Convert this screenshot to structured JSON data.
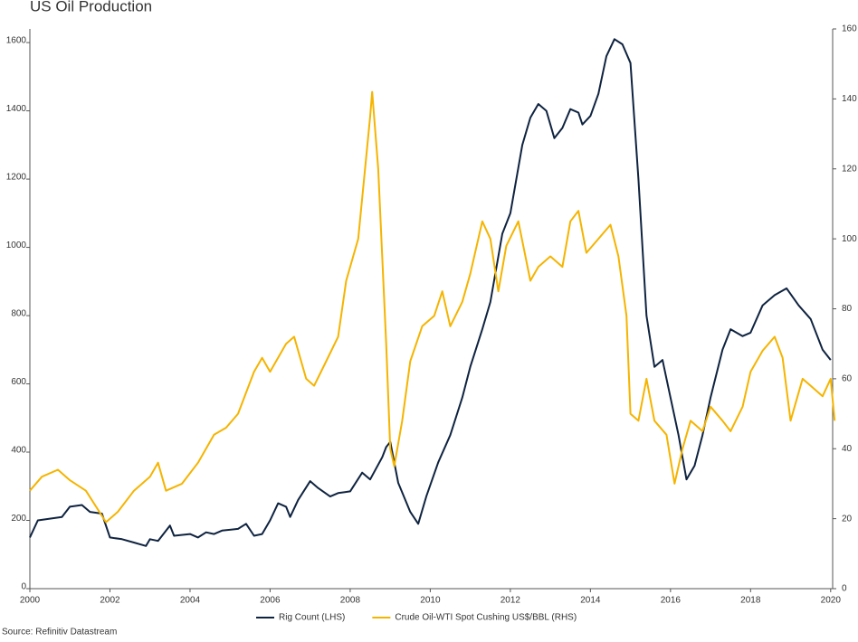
{
  "chart_data": {
    "type": "line",
    "title": "US Oil Production",
    "source": "Source: Refinitiv Datastream",
    "xlim": [
      2000,
      2020.05
    ],
    "xticks": [
      2000,
      2002,
      2004,
      2006,
      2008,
      2010,
      2012,
      2014,
      2016,
      2018,
      2020
    ],
    "ylim": [
      0,
      1640
    ],
    "yticks": [
      0,
      200,
      400,
      600,
      800,
      1000,
      1200,
      1400,
      1600
    ],
    "y2lim": [
      0,
      160
    ],
    "y2ticks": [
      0,
      20,
      40,
      60,
      80,
      100,
      120,
      140,
      160
    ],
    "legend": "bottom",
    "series": [
      {
        "name": "Rig Count (LHS)",
        "color": "#0f2340",
        "axis": "y",
        "x": [
          2000,
          2000.2,
          2000.5,
          2000.8,
          2001.0,
          2001.3,
          2001.5,
          2001.8,
          2002.0,
          2002.3,
          2002.6,
          2002.9,
          2003.0,
          2003.2,
          2003.5,
          2003.6,
          2004.0,
          2004.2,
          2004.4,
          2004.6,
          2004.8,
          2005.2,
          2005.4,
          2005.6,
          2005.8,
          2006.0,
          2006.2,
          2006.4,
          2006.5,
          2006.7,
          2007.0,
          2007.2,
          2007.5,
          2007.7,
          2008.0,
          2008.3,
          2008.5,
          2008.8,
          2008.9,
          2009.0,
          2009.2,
          2009.5,
          2009.7,
          2009.9,
          2010.2,
          2010.5,
          2010.8,
          2011.0,
          2011.3,
          2011.5,
          2011.8,
          2012.0,
          2012.3,
          2012.5,
          2012.7,
          2012.9,
          2013.1,
          2013.3,
          2013.5,
          2013.7,
          2013.8,
          2014.0,
          2014.2,
          2014.4,
          2014.6,
          2014.8,
          2015.0,
          2015.2,
          2015.4,
          2015.6,
          2015.8,
          2016.0,
          2016.2,
          2016.4,
          2016.6,
          2016.8,
          2017.0,
          2017.3,
          2017.5,
          2017.8,
          2018.0,
          2018.3,
          2018.6,
          2018.9,
          2019.2,
          2019.5,
          2019.8,
          2020.0
        ],
        "values": [
          150,
          200,
          205,
          210,
          240,
          245,
          225,
          220,
          150,
          145,
          135,
          125,
          145,
          140,
          185,
          155,
          160,
          150,
          165,
          160,
          170,
          175,
          190,
          155,
          160,
          200,
          250,
          240,
          210,
          260,
          315,
          295,
          270,
          280,
          285,
          340,
          320,
          385,
          415,
          430,
          310,
          225,
          190,
          270,
          370,
          450,
          560,
          650,
          760,
          840,
          1040,
          1100,
          1300,
          1380,
          1420,
          1400,
          1320,
          1350,
          1405,
          1395,
          1360,
          1385,
          1450,
          1560,
          1610,
          1595,
          1540,
          1200,
          800,
          650,
          670,
          560,
          450,
          320,
          360,
          450,
          560,
          700,
          760,
          740,
          750,
          830,
          860,
          880,
          830,
          790,
          700,
          670
        ]
      },
      {
        "name": "Crude Oil-WTI Spot Cushing US$/BBL (RHS)",
        "color": "#f5b400",
        "axis": "y2",
        "x": [
          2000,
          2000.3,
          2000.7,
          2001.0,
          2001.4,
          2001.9,
          2002.2,
          2002.6,
          2003.0,
          2003.2,
          2003.4,
          2003.8,
          2004.2,
          2004.6,
          2004.9,
          2005.2,
          2005.6,
          2005.8,
          2006.0,
          2006.4,
          2006.6,
          2006.9,
          2007.1,
          2007.4,
          2007.7,
          2007.9,
          2008.2,
          2008.5,
          2008.55,
          2008.7,
          2008.9,
          2009.0,
          2009.1,
          2009.3,
          2009.5,
          2009.8,
          2010.1,
          2010.3,
          2010.5,
          2010.8,
          2011.0,
          2011.3,
          2011.5,
          2011.7,
          2011.9,
          2012.2,
          2012.5,
          2012.7,
          2013.0,
          2013.3,
          2013.5,
          2013.7,
          2013.9,
          2014.2,
          2014.5,
          2014.7,
          2014.9,
          2015.0,
          2015.2,
          2015.4,
          2015.6,
          2015.9,
          2016.1,
          2016.3,
          2016.5,
          2016.8,
          2017.0,
          2017.3,
          2017.5,
          2017.8,
          2018.0,
          2018.3,
          2018.6,
          2018.8,
          2019.0,
          2019.3,
          2019.5,
          2019.8,
          2020.0,
          2020.1
        ],
        "values": [
          28,
          32,
          34,
          31,
          28,
          19,
          22,
          28,
          32,
          36,
          28,
          30,
          36,
          44,
          46,
          50,
          62,
          66,
          62,
          70,
          72,
          60,
          58,
          65,
          72,
          88,
          100,
          135,
          142,
          120,
          70,
          40,
          35,
          48,
          65,
          75,
          78,
          85,
          75,
          82,
          90,
          105,
          100,
          85,
          98,
          105,
          88,
          92,
          95,
          92,
          105,
          108,
          96,
          100,
          104,
          95,
          78,
          50,
          48,
          60,
          48,
          44,
          30,
          40,
          48,
          45,
          52,
          48,
          45,
          52,
          62,
          68,
          72,
          66,
          48,
          60,
          58,
          55,
          60,
          48
        ]
      }
    ]
  }
}
